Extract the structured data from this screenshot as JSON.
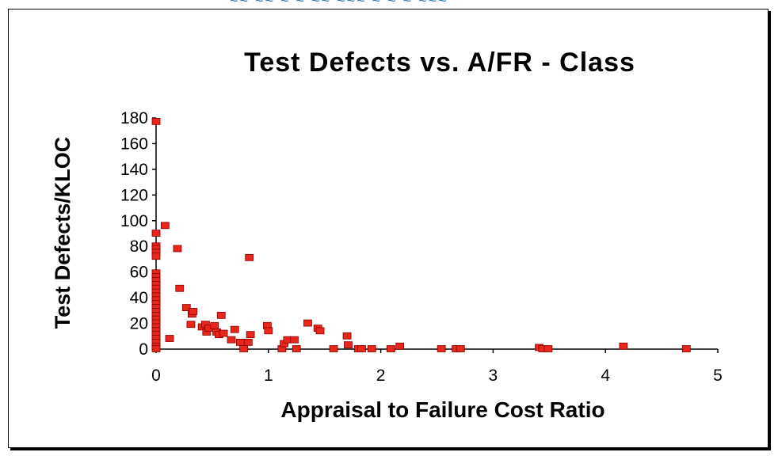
{
  "chart_data": {
    "type": "scatter",
    "title": "Test Defects vs. A/FR - Class",
    "xlabel": "Appraisal to Failure Cost Ratio",
    "ylabel": "Test Defects/KLOC",
    "xlim": [
      0,
      5
    ],
    "ylim": [
      0,
      180
    ],
    "xticks": [
      0,
      1,
      2,
      3,
      4,
      5
    ],
    "yticks": [
      0,
      20,
      40,
      60,
      80,
      100,
      120,
      140,
      160,
      180
    ],
    "grid": false,
    "legend": "none",
    "marker_color": "#e8261c",
    "marker_edge": "#8a0000",
    "points": [
      [
        0,
        177
      ],
      [
        0,
        90
      ],
      [
        0,
        80
      ],
      [
        0,
        78
      ],
      [
        0,
        75
      ],
      [
        0,
        72
      ],
      [
        0,
        59
      ],
      [
        0,
        56
      ],
      [
        0,
        53
      ],
      [
        0,
        50
      ],
      [
        0,
        47
      ],
      [
        0,
        44
      ],
      [
        0,
        41
      ],
      [
        0,
        38
      ],
      [
        0,
        35
      ],
      [
        0,
        32
      ],
      [
        0,
        29
      ],
      [
        0,
        26
      ],
      [
        0,
        23
      ],
      [
        0,
        20
      ],
      [
        0,
        17
      ],
      [
        0,
        14
      ],
      [
        0,
        11
      ],
      [
        0,
        8
      ],
      [
        0,
        5
      ],
      [
        0,
        2
      ],
      [
        0,
        0
      ],
      [
        0.08,
        96
      ],
      [
        0.12,
        8
      ],
      [
        0.19,
        78
      ],
      [
        0.21,
        47
      ],
      [
        0.27,
        32
      ],
      [
        0.31,
        19
      ],
      [
        0.32,
        27
      ],
      [
        0.33,
        29
      ],
      [
        0.41,
        17
      ],
      [
        0.44,
        19
      ],
      [
        0.45,
        13
      ],
      [
        0.47,
        16
      ],
      [
        0.52,
        18
      ],
      [
        0.54,
        13
      ],
      [
        0.56,
        11
      ],
      [
        0.58,
        26
      ],
      [
        0.6,
        12
      ],
      [
        0.67,
        7
      ],
      [
        0.7,
        15
      ],
      [
        0.75,
        5
      ],
      [
        0.78,
        0
      ],
      [
        0.82,
        5
      ],
      [
        0.83,
        71
      ],
      [
        0.84,
        11
      ],
      [
        0.99,
        18
      ],
      [
        1.0,
        14
      ],
      [
        1.12,
        0
      ],
      [
        1.14,
        4
      ],
      [
        1.17,
        7
      ],
      [
        1.23,
        7
      ],
      [
        1.25,
        0
      ],
      [
        1.35,
        20
      ],
      [
        1.44,
        16
      ],
      [
        1.46,
        14
      ],
      [
        1.58,
        0
      ],
      [
        1.7,
        10
      ],
      [
        1.71,
        3
      ],
      [
        1.8,
        0
      ],
      [
        1.83,
        0
      ],
      [
        1.92,
        0
      ],
      [
        2.09,
        0
      ],
      [
        2.17,
        2
      ],
      [
        2.54,
        0
      ],
      [
        2.67,
        0
      ],
      [
        2.71,
        0
      ],
      [
        3.41,
        1
      ],
      [
        3.44,
        0
      ],
      [
        3.49,
        0
      ],
      [
        4.16,
        2
      ],
      [
        4.72,
        0
      ]
    ]
  }
}
